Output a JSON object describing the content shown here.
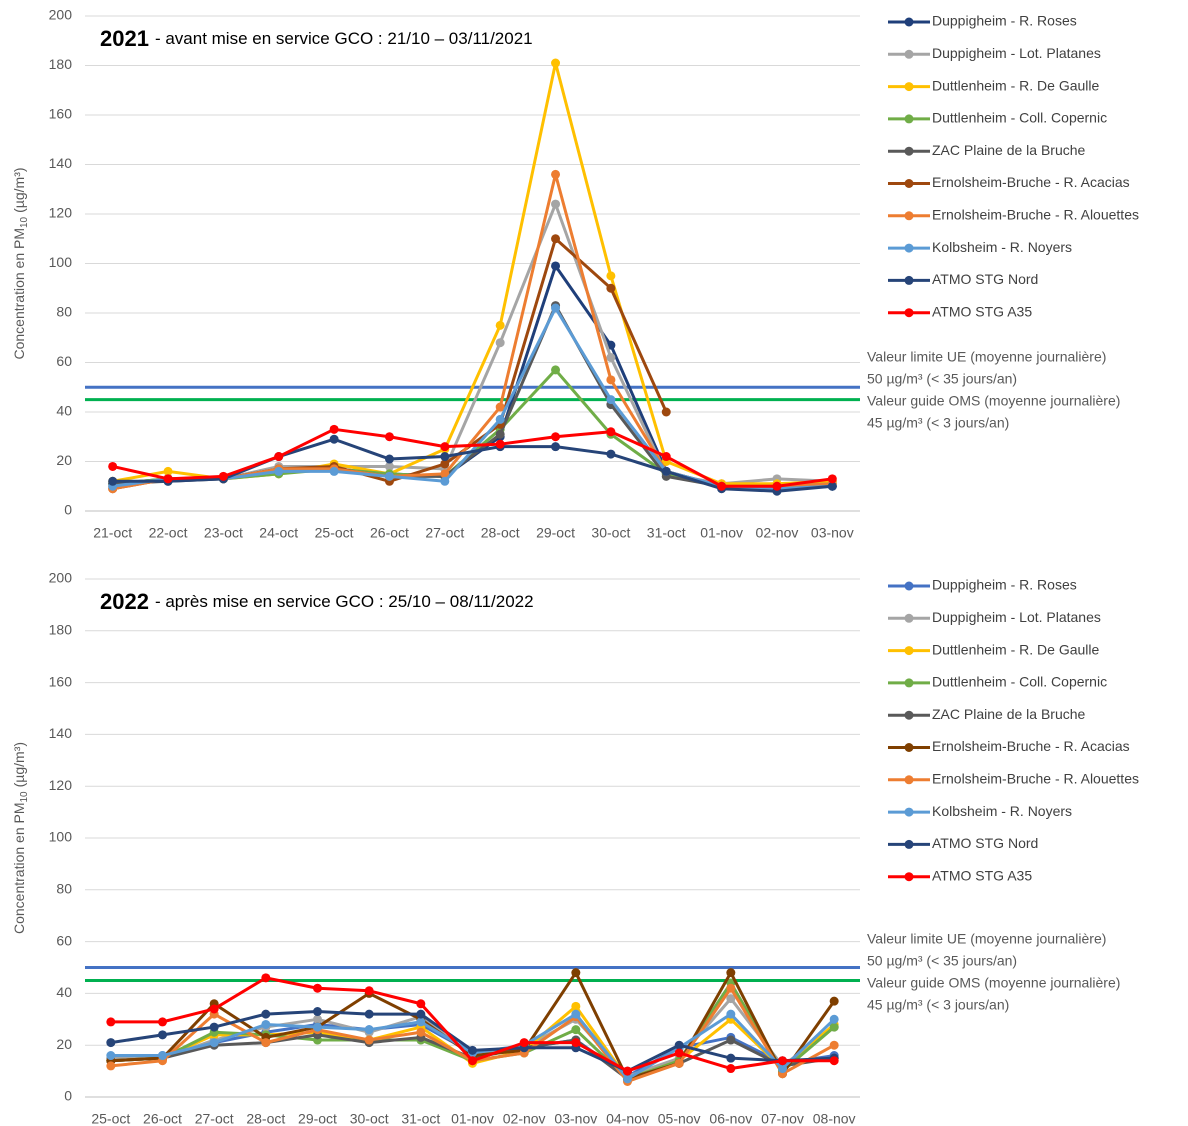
{
  "chart_data": [
    {
      "type": "line",
      "title_year": "2021",
      "title": "- avant mise en service GCO : 21/10 – 03/11/2021",
      "y_label": "Concentration en PM",
      "y_label_sub": "10",
      "y_label_unit": "(µg/m³)",
      "categories": [
        "21-oct",
        "22-oct",
        "23-oct",
        "24-oct",
        "25-oct",
        "26-oct",
        "27-oct",
        "28-oct",
        "29-oct",
        "30-oct",
        "31-oct",
        "01-nov",
        "02-nov",
        "03-nov"
      ],
      "ylim": [
        0,
        200
      ],
      "yticks": [
        0,
        20,
        40,
        60,
        80,
        100,
        120,
        140,
        160,
        180,
        200
      ],
      "grid": true,
      "reference_lines": [
        {
          "value": 50,
          "color": "#4472c4",
          "label": "Valeur limite UE (moyenne journalière)",
          "sublabel": "50 µg/m³ (< 35 jours/an)"
        },
        {
          "value": 45,
          "color": "#00b050",
          "label": "Valeur guide OMS (moyenne journalière)",
          "sublabel": "45 µg/m³ (< 3 jours/an)"
        }
      ],
      "series": [
        {
          "name": "Duppigheim - R. Roses",
          "color": "#1f3f7a",
          "values": [
            11,
            13,
            13,
            16,
            17,
            15,
            14,
            30,
            99,
            67,
            16,
            10,
            9,
            10
          ]
        },
        {
          "name": "Duppigheim - Lot. Platanes",
          "color": "#a5a5a5",
          "values": [
            10,
            13,
            13,
            18,
            18,
            18,
            17,
            68,
            124,
            62,
            15,
            11,
            13,
            12
          ]
        },
        {
          "name": "Duttlenheim - R. De Gaulle",
          "color": "#ffc000",
          "values": [
            12,
            16,
            13,
            15,
            19,
            15,
            25,
            75,
            181,
            95,
            20,
            11,
            11,
            12
          ]
        },
        {
          "name": "Duttlenheim - Coll. Copernic",
          "color": "#70ad47",
          "values": [
            11,
            13,
            13,
            15,
            17,
            15,
            14,
            33,
            57,
            31,
            15,
            10,
            10,
            11
          ]
        },
        {
          "name": "ZAC Plaine de la Bruche",
          "color": "#595959",
          "values": [
            11,
            12,
            13,
            17,
            17,
            14,
            14,
            31,
            83,
            43,
            14,
            10,
            9,
            10
          ]
        },
        {
          "name": "Ernolsheim-Bruche - R. Acacias",
          "color": "#9e480e",
          "values": [
            9,
            13,
            13,
            17,
            18,
            12,
            19,
            35,
            110,
            90,
            40,
            null,
            null,
            null
          ]
        },
        {
          "name": "Ernolsheim-Bruche - R. Alouettes",
          "color": "#ed7d31",
          "values": [
            9,
            13,
            13,
            17,
            17,
            14,
            15,
            42,
            136,
            53,
            16,
            10,
            10,
            11
          ]
        },
        {
          "name": "Kolbsheim - R. Noyers",
          "color": "#5b9bd5",
          "values": [
            10,
            13,
            13,
            16,
            16,
            14,
            12,
            37,
            82,
            45,
            16,
            10,
            9,
            10
          ]
        },
        {
          "name": "ATMO STG Nord",
          "color": "#264478",
          "values": [
            12,
            12,
            13,
            22,
            29,
            21,
            22,
            26,
            26,
            23,
            16,
            9,
            8,
            10
          ]
        },
        {
          "name": "ATMO STG A35",
          "color": "#ff0000",
          "values": [
            18,
            13,
            14,
            22,
            33,
            30,
            26,
            27,
            30,
            32,
            22,
            10,
            10,
            13
          ]
        }
      ]
    },
    {
      "type": "line",
      "title_year": "2022",
      "title": "- après mise en service GCO : 25/10 – 08/11/2022",
      "y_label": "Concentration en PM",
      "y_label_sub": "10",
      "y_label_unit": "(µg/m³)",
      "categories": [
        "25-oct",
        "26-oct",
        "27-oct",
        "28-oct",
        "29-oct",
        "30-oct",
        "31-oct",
        "01-nov",
        "02-nov",
        "03-nov",
        "04-nov",
        "05-nov",
        "06-nov",
        "07-nov",
        "08-nov"
      ],
      "ylim": [
        0,
        200
      ],
      "yticks": [
        0,
        20,
        40,
        60,
        80,
        100,
        120,
        140,
        160,
        180,
        200
      ],
      "grid": true,
      "reference_lines": [
        {
          "value": 50,
          "color": "#4472c4",
          "label": "Valeur limite UE (moyenne journalière)",
          "sublabel": "50 µg/m³ (< 35 jours/an)"
        },
        {
          "value": 45,
          "color": "#00b050",
          "label": "Valeur guide OMS (moyenne journalière)",
          "sublabel": "45 µg/m³ (< 3 jours/an)"
        }
      ],
      "series": [
        {
          "name": "Duppigheim - R. Roses",
          "color": "#4472c4",
          "values": [
            15,
            16,
            21,
            25,
            28,
            26,
            28,
            17,
            19,
            22,
            8,
            19,
            23,
            13,
            16
          ]
        },
        {
          "name": "Duppigheim - Lot. Platanes",
          "color": "#a5a5a5",
          "values": [
            15,
            15,
            22,
            27,
            30,
            25,
            31,
            16,
            19,
            30,
            8,
            15,
            38,
            12,
            27
          ]
        },
        {
          "name": "Duttlenheim - R. De Gaulle",
          "color": "#ffc000",
          "values": [
            14,
            15,
            24,
            24,
            25,
            22,
            27,
            13,
            18,
            35,
            7,
            14,
            30,
            11,
            28
          ]
        },
        {
          "name": "Duttlenheim - Coll. Copernic",
          "color": "#70ad47",
          "values": [
            14,
            15,
            25,
            24,
            22,
            22,
            22,
            14,
            17,
            26,
            7,
            14,
            44,
            10,
            27
          ]
        },
        {
          "name": "ZAC Plaine de la Bruche",
          "color": "#595959",
          "values": [
            14,
            15,
            20,
            21,
            24,
            21,
            23,
            15,
            19,
            22,
            7,
            13,
            22,
            12,
            15
          ]
        },
        {
          "name": "Ernolsheim-Bruche - R. Acacias",
          "color": "#7f3f00",
          "values": [
            14,
            15,
            36,
            23,
            27,
            40,
            30,
            16,
            18,
            48,
            7,
            13,
            48,
            9,
            37
          ]
        },
        {
          "name": "Ernolsheim-Bruche - R. Alouettes",
          "color": "#ed7d31",
          "values": [
            12,
            14,
            32,
            21,
            26,
            22,
            25,
            14,
            17,
            31,
            6,
            13,
            42,
            9,
            20
          ]
        },
        {
          "name": "Kolbsheim - R. Noyers",
          "color": "#5b9bd5",
          "values": [
            16,
            16,
            21,
            28,
            27,
            26,
            29,
            17,
            20,
            32,
            7,
            19,
            32,
            11,
            30
          ]
        },
        {
          "name": "ATMO STG Nord",
          "color": "#264478",
          "values": [
            21,
            24,
            27,
            32,
            33,
            32,
            32,
            18,
            19,
            19,
            10,
            20,
            15,
            14,
            15
          ]
        },
        {
          "name": "ATMO STG A35",
          "color": "#ff0000",
          "values": [
            29,
            29,
            34,
            46,
            42,
            41,
            36,
            14,
            21,
            21,
            10,
            17,
            11,
            14,
            14
          ]
        }
      ]
    }
  ]
}
